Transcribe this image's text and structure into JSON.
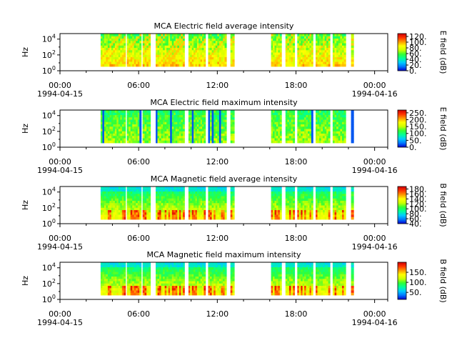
{
  "chart_data": [
    {
      "type": "heatmap",
      "title": "MCA  Electric field average intensity",
      "ylabel": "Hz",
      "y_scale": "log",
      "ylim": [
        1,
        50000
      ],
      "y_ticks": [
        {
          "base": "10",
          "exp": "0",
          "value": 1
        },
        {
          "base": "10",
          "exp": "2",
          "value": 100
        },
        {
          "base": "10",
          "exp": "4",
          "value": 10000
        }
      ],
      "xlim": [
        "1994-04-15T00:00",
        "1994-04-16T01:00"
      ],
      "x_ticks": [
        {
          "time": "00:00",
          "date": "1994-04-15",
          "hour": 0
        },
        {
          "time": "06:00",
          "date": "",
          "hour": 6
        },
        {
          "time": "12:00",
          "date": "",
          "hour": 12
        },
        {
          "time": "18:00",
          "date": "",
          "hour": 18
        },
        {
          "time": "00:00",
          "date": "1994-04-16",
          "hour": 24
        }
      ],
      "colorbar": {
        "label": "E field (dB)",
        "range": [
          0,
          130
        ],
        "ticks": [
          "0.",
          "20.",
          "40.",
          "60.",
          "80.",
          "100.",
          "120."
        ],
        "tick_values": [
          0,
          20,
          40,
          60,
          80,
          100,
          120
        ]
      },
      "data_intervals_hours": [
        [
          3.1,
          5.0
        ],
        [
          5.1,
          6.2
        ],
        [
          6.3,
          6.9
        ],
        [
          7.3,
          9.5
        ],
        [
          9.8,
          11.1
        ],
        [
          11.3,
          12.7
        ],
        [
          13.0,
          13.3
        ],
        [
          16.1,
          16.9
        ],
        [
          17.2,
          17.9
        ],
        [
          18.1,
          19.3
        ],
        [
          19.5,
          20.6
        ],
        [
          20.8,
          21.8
        ],
        [
          22.2,
          22.4
        ]
      ]
    },
    {
      "type": "heatmap",
      "title": "MCA  Electric field maximum intensity",
      "ylabel": "Hz",
      "y_scale": "log",
      "ylim": [
        1,
        50000
      ],
      "y_ticks": [
        {
          "base": "10",
          "exp": "0",
          "value": 1
        },
        {
          "base": "10",
          "exp": "2",
          "value": 100
        },
        {
          "base": "10",
          "exp": "4",
          "value": 10000
        }
      ],
      "xlim": [
        "1994-04-15T00:00",
        "1994-04-16T01:00"
      ],
      "x_ticks": [
        {
          "time": "00:00",
          "date": "1994-04-15",
          "hour": 0
        },
        {
          "time": "06:00",
          "date": "",
          "hour": 6
        },
        {
          "time": "12:00",
          "date": "",
          "hour": 12
        },
        {
          "time": "18:00",
          "date": "",
          "hour": 18
        },
        {
          "time": "00:00",
          "date": "1994-04-16",
          "hour": 24
        }
      ],
      "colorbar": {
        "label": "E field (dB)",
        "range": [
          0,
          270
        ],
        "ticks": [
          "0.",
          "50.",
          "100.",
          "150.",
          "200.",
          "250."
        ],
        "tick_values": [
          0,
          50,
          100,
          150,
          200,
          250
        ]
      },
      "data_intervals_hours": [
        [
          3.1,
          5.0
        ],
        [
          5.1,
          6.2
        ],
        [
          6.3,
          6.9
        ],
        [
          7.3,
          9.5
        ],
        [
          9.8,
          11.1
        ],
        [
          11.3,
          12.7
        ],
        [
          13.0,
          13.3
        ],
        [
          16.1,
          16.9
        ],
        [
          17.2,
          17.9
        ],
        [
          18.1,
          19.3
        ],
        [
          19.5,
          20.6
        ],
        [
          20.8,
          21.8
        ],
        [
          22.2,
          22.4
        ]
      ]
    },
    {
      "type": "heatmap",
      "title": "MCA  Magnetic field average intensity",
      "ylabel": "Hz",
      "y_scale": "log",
      "ylim": [
        1,
        50000
      ],
      "y_ticks": [
        {
          "base": "10",
          "exp": "0",
          "value": 1
        },
        {
          "base": "10",
          "exp": "2",
          "value": 100
        },
        {
          "base": "10",
          "exp": "4",
          "value": 10000
        }
      ],
      "xlim": [
        "1994-04-15T00:00",
        "1994-04-16T01:00"
      ],
      "x_ticks": [
        {
          "time": "00:00",
          "date": "1994-04-15",
          "hour": 0
        },
        {
          "time": "06:00",
          "date": "",
          "hour": 6
        },
        {
          "time": "12:00",
          "date": "",
          "hour": 12
        },
        {
          "time": "18:00",
          "date": "",
          "hour": 18
        },
        {
          "time": "00:00",
          "date": "1994-04-16",
          "hour": 24
        }
      ],
      "colorbar": {
        "label": "B field (dB)",
        "range": [
          40,
          190
        ],
        "ticks": [
          "40.",
          "60.",
          "80.",
          "100.",
          "120.",
          "140.",
          "160.",
          "180."
        ],
        "tick_values": [
          40,
          60,
          80,
          100,
          120,
          140,
          160,
          180
        ]
      },
      "data_intervals_hours": [
        [
          3.1,
          5.0
        ],
        [
          5.1,
          6.2
        ],
        [
          6.3,
          6.9
        ],
        [
          7.3,
          9.5
        ],
        [
          9.8,
          11.1
        ],
        [
          11.3,
          12.7
        ],
        [
          13.0,
          13.3
        ],
        [
          16.1,
          16.9
        ],
        [
          17.2,
          17.9
        ],
        [
          18.1,
          19.3
        ],
        [
          19.5,
          20.6
        ],
        [
          20.8,
          21.8
        ],
        [
          22.2,
          22.4
        ]
      ]
    },
    {
      "type": "heatmap",
      "title": "MCA  Magnetic field maximum intensity",
      "ylabel": "Hz",
      "y_scale": "log",
      "ylim": [
        1,
        50000
      ],
      "y_ticks": [
        {
          "base": "10",
          "exp": "0",
          "value": 1
        },
        {
          "base": "10",
          "exp": "2",
          "value": 100
        },
        {
          "base": "10",
          "exp": "4",
          "value": 10000
        }
      ],
      "xlim": [
        "1994-04-15T00:00",
        "1994-04-16T01:00"
      ],
      "x_ticks": [
        {
          "time": "00:00",
          "date": "1994-04-15",
          "hour": 0
        },
        {
          "time": "06:00",
          "date": "",
          "hour": 6
        },
        {
          "time": "12:00",
          "date": "",
          "hour": 12
        },
        {
          "time": "18:00",
          "date": "",
          "hour": 18
        },
        {
          "time": "00:00",
          "date": "1994-04-16",
          "hour": 24
        }
      ],
      "colorbar": {
        "label": "B field (dB)",
        "range": [
          15,
          200
        ],
        "ticks": [
          "50.",
          "100.",
          "150."
        ],
        "tick_values": [
          50,
          100,
          150
        ]
      },
      "data_intervals_hours": [
        [
          3.1,
          5.0
        ],
        [
          5.1,
          6.2
        ],
        [
          6.3,
          6.9
        ],
        [
          7.3,
          9.5
        ],
        [
          9.8,
          11.1
        ],
        [
          11.3,
          12.7
        ],
        [
          13.0,
          13.3
        ],
        [
          16.1,
          16.9
        ],
        [
          17.2,
          17.9
        ],
        [
          18.1,
          19.3
        ],
        [
          19.5,
          20.6
        ],
        [
          20.8,
          21.8
        ],
        [
          22.2,
          22.4
        ]
      ]
    }
  ],
  "colormap": [
    "#0000cc",
    "#0077ff",
    "#00ccff",
    "#00ff99",
    "#33ff33",
    "#ccff00",
    "#ffff00",
    "#ff9900",
    "#ff3300",
    "#cc0000"
  ]
}
